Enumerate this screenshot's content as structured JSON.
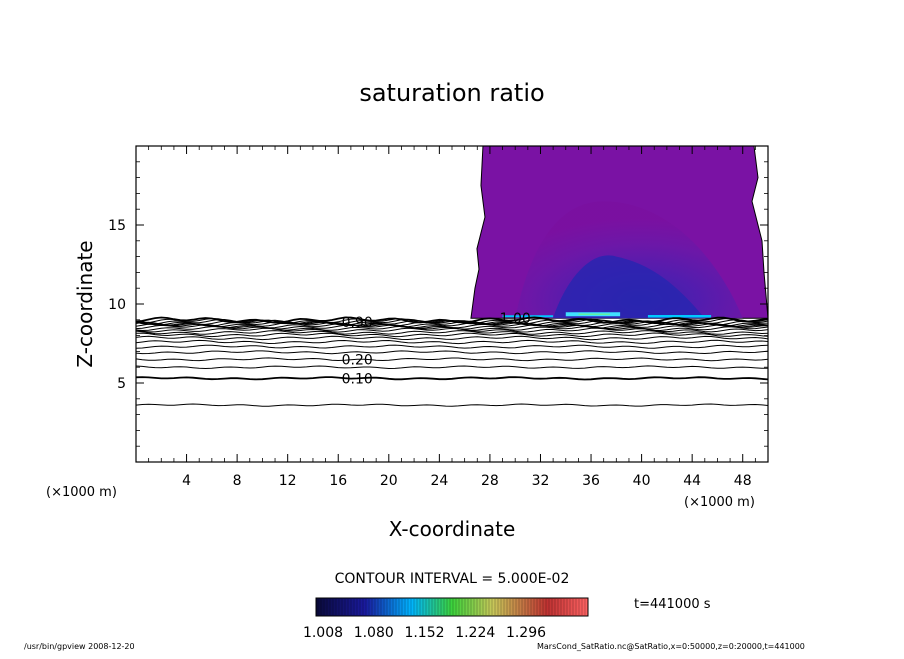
{
  "chart_data": {
    "type": "contour",
    "title": "saturation ratio",
    "xlabel": "X-coordinate",
    "ylabel": "Z-coordinate",
    "x_unit": "(×1000 m)",
    "z_unit": "(×1000 m)",
    "xlim": [
      0,
      50
    ],
    "ylim": [
      0,
      20
    ],
    "x_ticks": [
      4,
      8,
      12,
      16,
      20,
      24,
      28,
      32,
      36,
      40,
      44,
      48
    ],
    "y_ticks": [
      5,
      10,
      15
    ],
    "contour_interval_text": "CONTOUR INTERVAL = 5.000E-02",
    "contour_levels": [
      0.05,
      0.1,
      0.15,
      0.2,
      0.25,
      0.3,
      0.35,
      0.4,
      0.45,
      0.5,
      0.55,
      0.6,
      0.65,
      0.7,
      0.75,
      0.8,
      0.85,
      0.9,
      0.95,
      1.0
    ],
    "contour_heights": [
      3.6,
      5.3,
      6.0,
      6.5,
      6.95,
      7.3,
      7.6,
      7.85,
      8.05,
      8.2,
      8.35,
      8.45,
      8.55,
      8.62,
      8.7,
      8.76,
      8.82,
      8.87,
      8.92,
      8.98
    ],
    "contour_labels": [
      {
        "text": "0.10",
        "x": 17.5,
        "z": 5.3
      },
      {
        "text": "0.20",
        "x": 17.5,
        "z": 6.5
      },
      {
        "text": "0.90",
        "x": 17.5,
        "z": 8.85
      },
      {
        "text": "1.00",
        "x": 30.0,
        "z": 9.1
      }
    ],
    "shaded_region": {
      "x_start": 26.5,
      "x_end": 50,
      "z_bottom": 9.1,
      "z_top": 20
    },
    "colorbar": {
      "tick_labels": [
        "1.008",
        "1.080",
        "1.152",
        "1.224",
        "1.296"
      ],
      "colors": [
        "#0a0a3a",
        "#1a1a9e",
        "#00b4ff",
        "#3cd23c",
        "#c8c85a",
        "#c03232",
        "#ff6464"
      ]
    },
    "time_label": "t=441000 s"
  },
  "footer": {
    "left": "/usr/bin/gpview   2008-12-20",
    "right": "MarsCond_SatRatio.nc@SatRatio,x=0:50000,z=0:20000,t=441000"
  }
}
